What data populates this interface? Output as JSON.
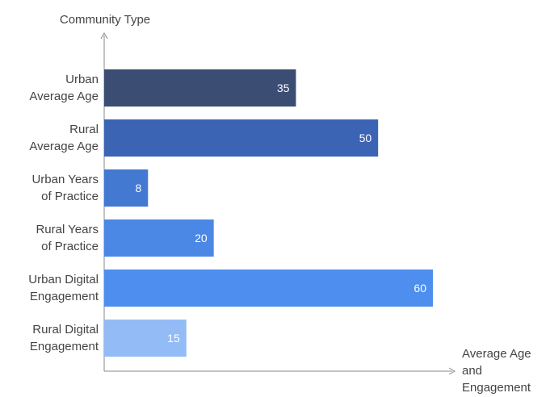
{
  "chart_data": {
    "type": "bar",
    "orientation": "horizontal",
    "ylabel": "Community Type",
    "xlabel": "Average Age and Engagement",
    "categories": [
      [
        "Urban",
        "Average Age"
      ],
      [
        "Rural",
        "Average Age"
      ],
      [
        "Urban Years",
        "of Practice"
      ],
      [
        "Rural Years",
        "of Practice"
      ],
      [
        "Urban Digital",
        "Engagement"
      ],
      [
        "Rural Digital",
        "Engagement"
      ]
    ],
    "values": [
      35,
      50,
      8,
      20,
      60,
      15
    ],
    "bar_colors": [
      "#3b4d73",
      "#3c64b4",
      "#4379d0",
      "#4b87e5",
      "#4d8eef",
      "#93bbf5"
    ],
    "xlim": [
      0,
      60
    ],
    "grid": false,
    "legend": "none"
  }
}
